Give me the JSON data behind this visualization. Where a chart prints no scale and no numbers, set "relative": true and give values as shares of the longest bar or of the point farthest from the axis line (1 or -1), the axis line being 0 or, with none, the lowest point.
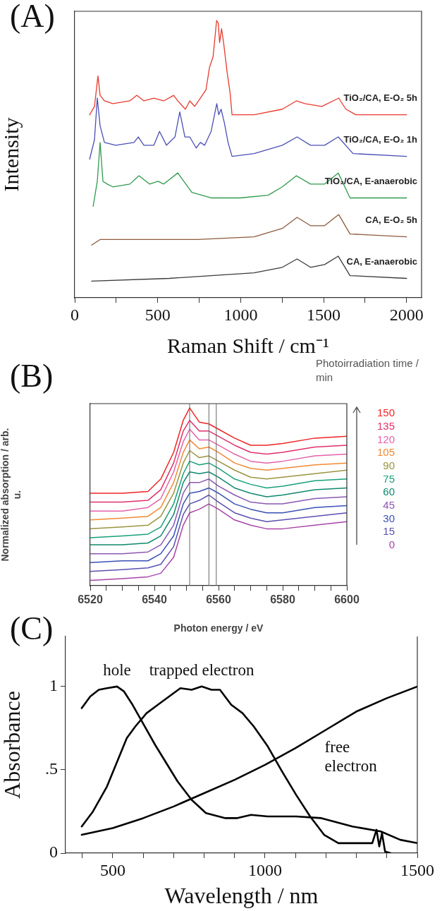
{
  "chart_data": [
    {
      "type": "line",
      "title": "(A)",
      "xlabel": "Raman Shift / cm⁻¹",
      "ylabel": "Intensity",
      "relative": true,
      "marker": "none",
      "xlim": [
        0,
        2090
      ],
      "xticks": [
        0,
        {
          "value": 250,
          "label": null
        },
        500,
        {
          "value": 750,
          "label": null
        },
        1000,
        {
          "value": 1250,
          "label": null
        },
        1500,
        {
          "value": 1750,
          "label": null
        },
        2000
      ],
      "series": [
        {
          "name": "TiO₂/CA, E-O₂ 5h",
          "color": "#e83a2e",
          "x": [
            90,
            119,
            140,
            153,
            179,
            230,
            332,
            374,
            417,
            477,
            536,
            596,
            621,
            667,
            693,
            723,
            757,
            791,
            812,
            834,
            855,
            865,
            873,
            885,
            897,
            919,
            936,
            948,
            1081,
            1251,
            1336,
            1387,
            1489,
            1591,
            1634,
            1694,
            2000
          ],
          "values": [
            0.66,
            0.69,
            0.8,
            0.73,
            0.71,
            0.7,
            0.71,
            0.73,
            0.71,
            0.72,
            0.71,
            0.73,
            0.71,
            0.68,
            0.71,
            0.69,
            0.72,
            0.75,
            0.83,
            0.87,
            1,
            0.99,
            0.92,
            0.97,
            0.92,
            0.81,
            0.74,
            0.66,
            0.66,
            0.68,
            0.71,
            0.7,
            0.69,
            0.72,
            0.68,
            0.66,
            0.66
          ]
        },
        {
          "name": "TiO₂/CA, E-O₂ 1h",
          "color": "#4b4fb5",
          "x": [
            90,
            119,
            136,
            153,
            179,
            247,
            357,
            383,
            417,
            477,
            511,
            553,
            604,
            633,
            664,
            693,
            732,
            757,
            783,
            822,
            856,
            868,
            882,
            902,
            924,
            948,
            1081,
            1251,
            1340,
            1421,
            1506,
            1588,
            1677,
            2000
          ],
          "values": [
            0.5,
            0.57,
            0.72,
            0.62,
            0.56,
            0.55,
            0.56,
            0.58,
            0.55,
            0.55,
            0.6,
            0.55,
            0.58,
            0.67,
            0.58,
            0.58,
            0.54,
            0.56,
            0.55,
            0.6,
            0.7,
            0.66,
            0.68,
            0.63,
            0.56,
            0.51,
            0.52,
            0.55,
            0.58,
            0.55,
            0.55,
            0.58,
            0.52,
            0.51
          ]
        },
        {
          "name": "TiO₂/CA, E-anaerobic",
          "color": "#2f9a4e",
          "x": [
            111,
            136,
            153,
            170,
            196,
            230,
            332,
            387,
            451,
            502,
            536,
            621,
            706,
            826,
            996,
            1166,
            1251,
            1336,
            1421,
            1506,
            1588,
            1659,
            2000
          ],
          "values": [
            0.33,
            0.42,
            0.56,
            0.42,
            0.41,
            0.4,
            0.41,
            0.44,
            0.41,
            0.42,
            0.41,
            0.45,
            0.38,
            0.36,
            0.36,
            0.37,
            0.4,
            0.44,
            0.41,
            0.41,
            0.45,
            0.36,
            0.36
          ]
        },
        {
          "name": "CA, E-O₂ 5h",
          "color": "#8c5a3c",
          "x": [
            102,
            153,
            230,
            740,
            1081,
            1251,
            1340,
            1421,
            1506,
            1591,
            1659,
            2000
          ],
          "values": [
            0.19,
            0.21,
            0.21,
            0.21,
            0.22,
            0.25,
            0.29,
            0.26,
            0.26,
            0.3,
            0.23,
            0.22
          ]
        },
        {
          "name": "CA, E-anaerobic",
          "color": "#3a3a3a",
          "x": [
            102,
            570,
            1081,
            1251,
            1340,
            1421,
            1506,
            1588,
            1659,
            2000
          ],
          "values": [
            0.06,
            0.07,
            0.09,
            0.11,
            0.14,
            0.11,
            0.12,
            0.15,
            0.08,
            0.07
          ]
        }
      ]
    },
    {
      "type": "line",
      "title": "(B)",
      "xlabel": "Photon energy / eV",
      "ylabel": "Normalized absorption / arb. u.",
      "legend_title": "Photoirradiation time / min",
      "relative": true,
      "marker": "none",
      "xlim": [
        6520,
        6600
      ],
      "xticks": [
        6520,
        {
          "value": 6525,
          "label": null
        },
        {
          "value": 6530,
          "label": null
        },
        {
          "value": 6535,
          "label": null
        },
        6540,
        {
          "value": 6545,
          "label": null
        },
        {
          "value": 6550,
          "label": null
        },
        {
          "value": 6555,
          "label": null
        },
        6560,
        {
          "value": 6565,
          "label": null
        },
        {
          "value": 6570,
          "label": null
        },
        {
          "value": 6575,
          "label": null
        },
        6580,
        {
          "value": 6585,
          "label": null
        },
        {
          "value": 6590,
          "label": null
        },
        {
          "value": 6595,
          "label": null
        },
        6600
      ],
      "x": [
        6520,
        6530,
        6538,
        6542,
        6546,
        6549,
        6551,
        6554,
        6557,
        6560,
        6565,
        6570,
        6575,
        6580,
        6590,
        6600
      ],
      "ref_lines": [
        {
          "axis": "x",
          "value": 6551,
          "color": "#666666"
        },
        {
          "axis": "x",
          "value": 6557,
          "color": "#666666"
        },
        {
          "axis": "x",
          "value": 6559.3,
          "color": "#666666"
        }
      ],
      "series": [
        {
          "name": "150",
          "color": "#f02424",
          "values": [
            0.52,
            0.52,
            0.53,
            0.6,
            0.75,
            0.93,
            1,
            0.92,
            0.91,
            0.88,
            0.83,
            0.79,
            0.79,
            0.8,
            0.83,
            0.84
          ]
        },
        {
          "name": "135",
          "color": "#e0306a",
          "values": [
            0.47,
            0.47,
            0.48,
            0.54,
            0.69,
            0.87,
            0.93,
            0.87,
            0.87,
            0.84,
            0.79,
            0.75,
            0.74,
            0.75,
            0.78,
            0.79
          ]
        },
        {
          "name": "120",
          "color": "#e462a8",
          "values": [
            0.42,
            0.42,
            0.44,
            0.49,
            0.64,
            0.81,
            0.88,
            0.82,
            0.82,
            0.79,
            0.74,
            0.7,
            0.69,
            0.7,
            0.73,
            0.74
          ]
        },
        {
          "name": "105",
          "color": "#f08a34",
          "values": [
            0.37,
            0.38,
            0.39,
            0.44,
            0.58,
            0.75,
            0.82,
            0.77,
            0.78,
            0.75,
            0.69,
            0.66,
            0.65,
            0.66,
            0.68,
            0.69
          ]
        },
        {
          "name": "90",
          "color": "#9a9440",
          "values": [
            0.32,
            0.33,
            0.34,
            0.39,
            0.52,
            0.69,
            0.76,
            0.72,
            0.73,
            0.7,
            0.65,
            0.61,
            0.6,
            0.61,
            0.63,
            0.65
          ]
        },
        {
          "name": "75",
          "color": "#18a07a",
          "values": [
            0.27,
            0.28,
            0.29,
            0.33,
            0.46,
            0.63,
            0.7,
            0.68,
            0.69,
            0.66,
            0.6,
            0.57,
            0.55,
            0.56,
            0.59,
            0.6
          ]
        },
        {
          "name": "60",
          "color": "#10886e",
          "values": [
            0.23,
            0.23,
            0.24,
            0.28,
            0.4,
            0.58,
            0.64,
            0.63,
            0.64,
            0.61,
            0.55,
            0.52,
            0.5,
            0.51,
            0.54,
            0.55
          ]
        },
        {
          "name": "45",
          "color": "#8a58b4",
          "values": [
            0.18,
            0.18,
            0.19,
            0.23,
            0.34,
            0.52,
            0.58,
            0.58,
            0.6,
            0.56,
            0.51,
            0.47,
            0.46,
            0.46,
            0.49,
            0.5
          ]
        },
        {
          "name": "30",
          "color": "#3a50b4",
          "values": [
            0.13,
            0.14,
            0.14,
            0.18,
            0.28,
            0.46,
            0.52,
            0.53,
            0.55,
            0.52,
            0.46,
            0.43,
            0.41,
            0.41,
            0.44,
            0.45
          ]
        },
        {
          "name": "15",
          "color": "#5a50b0",
          "values": [
            0.08,
            0.09,
            0.1,
            0.12,
            0.22,
            0.4,
            0.46,
            0.48,
            0.51,
            0.47,
            0.41,
            0.38,
            0.36,
            0.37,
            0.39,
            0.41
          ]
        },
        {
          "name": "0",
          "color": "#a844a8",
          "values": [
            0.03,
            0.04,
            0.05,
            0.07,
            0.16,
            0.34,
            0.41,
            0.43,
            0.46,
            0.43,
            0.37,
            0.34,
            0.32,
            0.32,
            0.34,
            0.36
          ]
        }
      ]
    },
    {
      "type": "line",
      "title": "(C)",
      "xlabel": "Wavelength / nm",
      "ylabel": "Absorbance",
      "marker": "none",
      "xlim": [
        345,
        1500
      ],
      "ylim": [
        0,
        1.3
      ],
      "xticks": [
        {
          "value": 400,
          "label": null
        },
        500,
        {
          "value": 600,
          "label": null
        },
        {
          "value": 700,
          "label": null
        },
        {
          "value": 800,
          "label": null
        },
        {
          "value": 900,
          "label": null
        },
        1000,
        {
          "value": 1100,
          "label": null
        },
        {
          "value": 1200,
          "label": null
        },
        {
          "value": 1300,
          "label": null
        },
        {
          "value": 1400,
          "label": null
        },
        1500
      ],
      "yticks": [
        0,
        {
          "value": 0.5,
          "label": ".5"
        },
        1
      ],
      "series": [
        {
          "name": "hole",
          "color": "#000000",
          "x": [
            398,
            426,
            454,
            481,
            514,
            537,
            565,
            602,
            639,
            676,
            713,
            759,
            806,
            870,
            907,
            954,
            1009,
            1102,
            1185,
            1287,
            1380,
            1444,
            1500
          ],
          "values": [
            0.87,
            0.94,
            0.98,
            0.99,
            1,
            0.97,
            0.89,
            0.77,
            0.65,
            0.54,
            0.43,
            0.32,
            0.24,
            0.21,
            0.21,
            0.23,
            0.22,
            0.22,
            0.21,
            0.16,
            0.13,
            0.08,
            0.06
          ]
        },
        {
          "name": "trapped electron",
          "color": "#000000",
          "x": [
            398,
            435,
            481,
            519,
            546,
            574,
            611,
            648,
            685,
            722,
            759,
            792,
            824,
            852,
            889,
            926,
            963,
            1009,
            1056,
            1102,
            1148,
            1194,
            1241,
            1296,
            1352,
            1366,
            1375,
            1384,
            1394,
            1412
          ],
          "values": [
            0.16,
            0.25,
            0.4,
            0.57,
            0.69,
            0.76,
            0.84,
            0.89,
            0.94,
            0.99,
            0.98,
            1,
            0.98,
            0.98,
            0.89,
            0.84,
            0.76,
            0.64,
            0.49,
            0.35,
            0.22,
            0.11,
            0.06,
            0.06,
            0.06,
            0.14,
            0.04,
            0.12,
            0.01,
            0
          ]
        },
        {
          "name": "free electron",
          "color": "#000000",
          "x": [
            398,
            500,
            600,
            700,
            800,
            900,
            1000,
            1100,
            1200,
            1300,
            1400,
            1500
          ],
          "values": [
            0.11,
            0.15,
            0.21,
            0.28,
            0.36,
            0.44,
            0.53,
            0.63,
            0.74,
            0.85,
            0.93,
            1
          ]
        }
      ]
    }
  ]
}
